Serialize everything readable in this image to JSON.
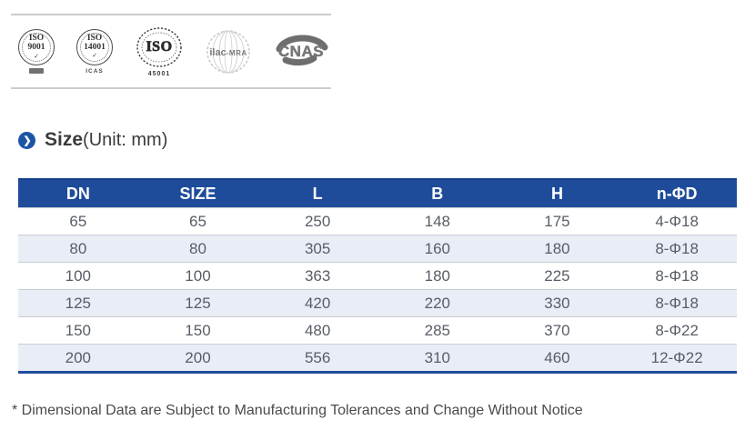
{
  "certifications": {
    "iso9001": {
      "line1": "ISO",
      "line2": "9001",
      "check": "✓"
    },
    "iso14001": {
      "line1": "ISO",
      "line2": "14001",
      "check": "✓",
      "sub": "ICAS"
    },
    "iso45001": {
      "label": "ISO",
      "sub": "45001"
    },
    "ilac": {
      "main": "ilac",
      "sub": "-MRA"
    },
    "cnas": {
      "label": "CNAS"
    }
  },
  "heading": {
    "title": "Size",
    "unit": "(Unit: mm)"
  },
  "table": {
    "columns": [
      "DN",
      "SIZE",
      "L",
      "B",
      "H",
      "n-ΦD"
    ],
    "rows": [
      [
        "65",
        "65",
        "250",
        "148",
        "175",
        "4-Φ18"
      ],
      [
        "80",
        "80",
        "305",
        "160",
        "180",
        "8-Φ18"
      ],
      [
        "100",
        "100",
        "363",
        "180",
        "225",
        "8-Φ18"
      ],
      [
        "125",
        "125",
        "420",
        "220",
        "330",
        "8-Φ18"
      ],
      [
        "150",
        "150",
        "480",
        "285",
        "370",
        "8-Φ22"
      ],
      [
        "200",
        "200",
        "556",
        "310",
        "460",
        "12-Φ22"
      ]
    ]
  },
  "footnote": "* Dimensional Data are Subject to Manufacturing Tolerances and Change Without Notice",
  "colors": {
    "table_header_bg": "#1e4c9a",
    "row_alt_bg": "#e9edf5",
    "accent_blue": "#1c55a4",
    "band_line": "#cccccc"
  }
}
